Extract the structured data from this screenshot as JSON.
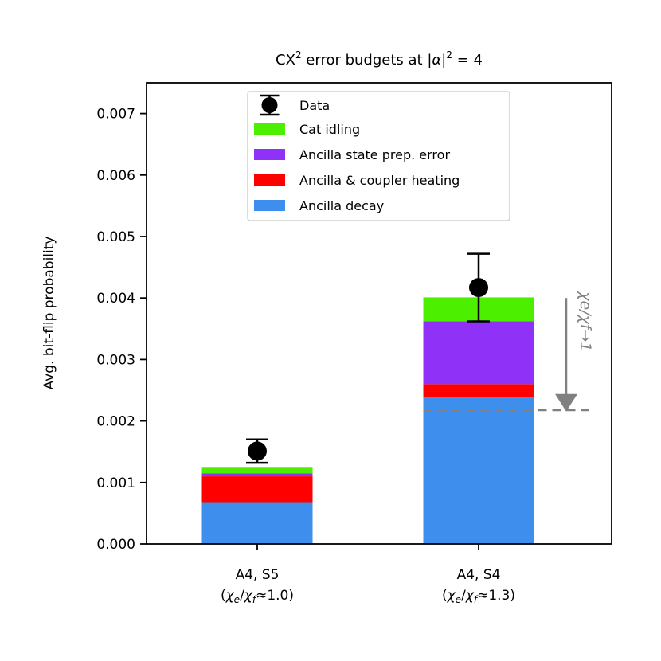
{
  "chart_data": {
    "type": "bar",
    "stacked": true,
    "title": "CX² error budgets at |α|² = 4",
    "ylabel": "Avg. bit-flip probability",
    "xlabel": "",
    "ylim": [
      0,
      0.0075
    ],
    "yticks": [
      0.0,
      0.001,
      0.002,
      0.003,
      0.004,
      0.005,
      0.006,
      0.007
    ],
    "ytick_labels": [
      "0.000",
      "0.001",
      "0.002",
      "0.003",
      "0.004",
      "0.005",
      "0.006",
      "0.007"
    ],
    "categories": [
      {
        "line1": "A4, S5",
        "line2": "(χe/χf≈1.0)"
      },
      {
        "line1": "A4, S4",
        "line2": "(χe/χf≈1.3)"
      }
    ],
    "series": [
      {
        "name": "Ancilla decay",
        "color": "#3d8eed",
        "values": [
          0.00068,
          0.00238
        ]
      },
      {
        "name": "Ancilla & coupler heating",
        "color": "#ff0000",
        "values": [
          0.00042,
          0.00022
        ]
      },
      {
        "name": "Ancilla state prep. error",
        "color": "#9031f7",
        "values": [
          5e-05,
          0.00102
        ]
      },
      {
        "name": "Cat idling",
        "color": "#4cef00",
        "values": [
          9e-05,
          0.00039
        ]
      }
    ],
    "data_points": {
      "name": "Data",
      "values": [
        0.00151,
        0.00417
      ],
      "err_low": [
        0.00019,
        0.00055
      ],
      "err_high": [
        0.00019,
        0.00055
      ]
    },
    "legend": {
      "placement": "top-center",
      "order": [
        "Data",
        "Cat idling",
        "Ancilla state prep. error",
        "Ancilla & coupler heating",
        "Ancilla decay"
      ]
    },
    "annotation": {
      "text": "χe/χf→1",
      "from_value": 0.004,
      "to_value": 0.00218,
      "dashed_line_value": 0.00218,
      "color": "#808080"
    },
    "grid": false
  }
}
